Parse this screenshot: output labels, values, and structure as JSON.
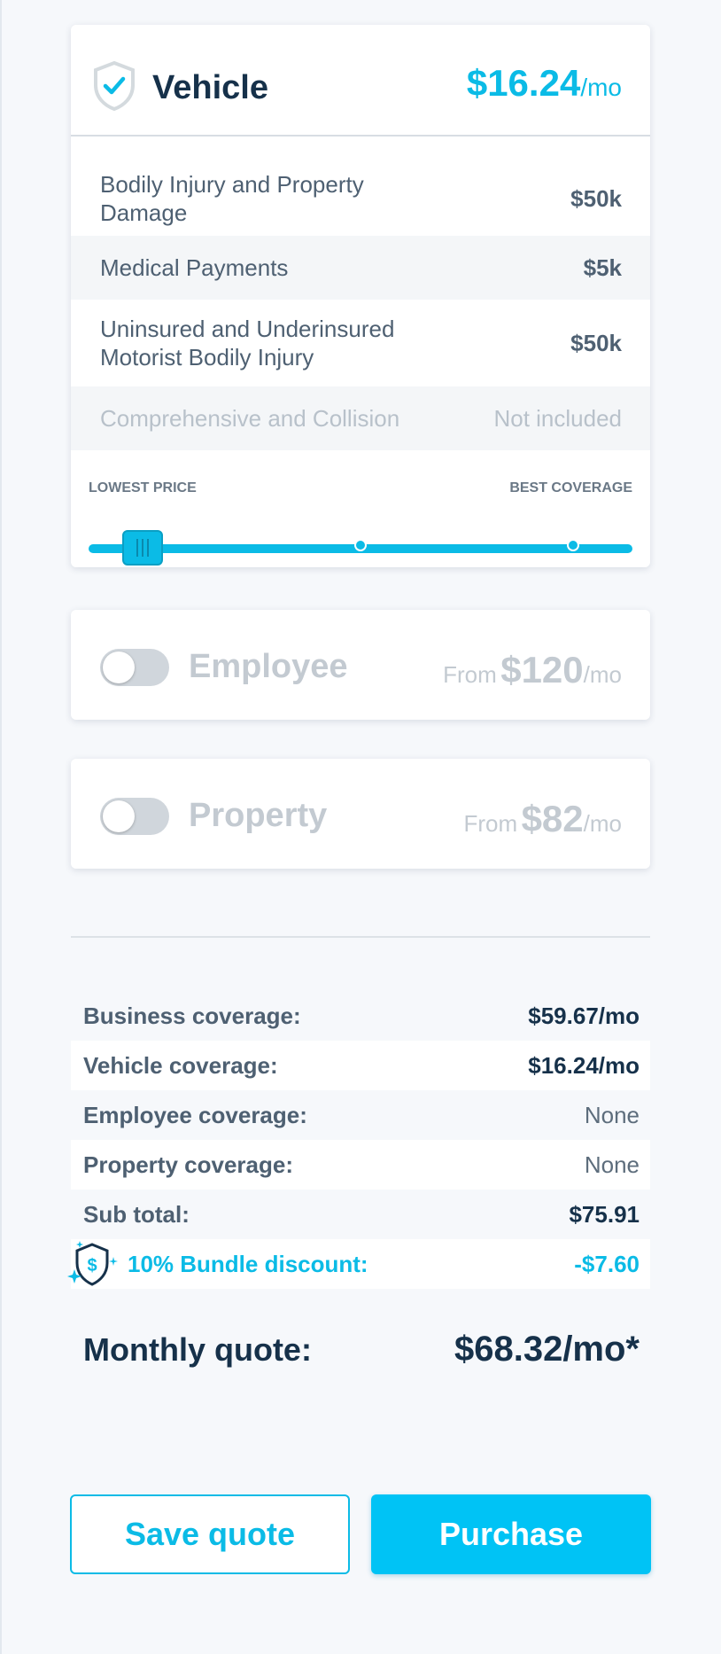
{
  "vehicle": {
    "title": "Vehicle",
    "price": "$16.24",
    "price_unit": "/mo",
    "coverages": [
      {
        "label": "Bodily Injury and Property Damage",
        "value": "$50k"
      },
      {
        "label": "Medical Payments",
        "value": "$5k"
      },
      {
        "label": "Uninsured and Underinsured Motorist Bodily Injury",
        "value": "$50k"
      },
      {
        "label": "Comprehensive and Collision",
        "value": "Not included"
      }
    ],
    "slider": {
      "left_label": "LOWEST PRICE",
      "right_label": "BEST COVERAGE",
      "stops": 4,
      "selected_stop": 1
    }
  },
  "employee": {
    "title": "Employee",
    "from": "From",
    "price": "$120",
    "unit": "/mo",
    "enabled": false
  },
  "property": {
    "title": "Property",
    "from": "From",
    "price": "$82",
    "unit": "/mo",
    "enabled": false
  },
  "summary": {
    "rows": [
      {
        "label": "Business coverage:",
        "value": "$59.67/mo"
      },
      {
        "label": "Vehicle coverage:",
        "value": "$16.24/mo"
      },
      {
        "label": "Employee coverage:",
        "value": "None"
      },
      {
        "label": "Property coverage:",
        "value": "None"
      },
      {
        "label": "Sub total:",
        "value": "$75.91"
      },
      {
        "label": "10% Bundle discount:",
        "value": "-$7.60"
      }
    ],
    "monthly_label": "Monthly quote:",
    "monthly_value": "$68.32/mo*"
  },
  "actions": {
    "save_label": "Save quote",
    "purchase_label": "Purchase"
  },
  "colors": {
    "accent": "#0bbbe6",
    "text_dark": "#16314a",
    "text_muted": "#4e6072",
    "disabled": "#c3cad1"
  }
}
